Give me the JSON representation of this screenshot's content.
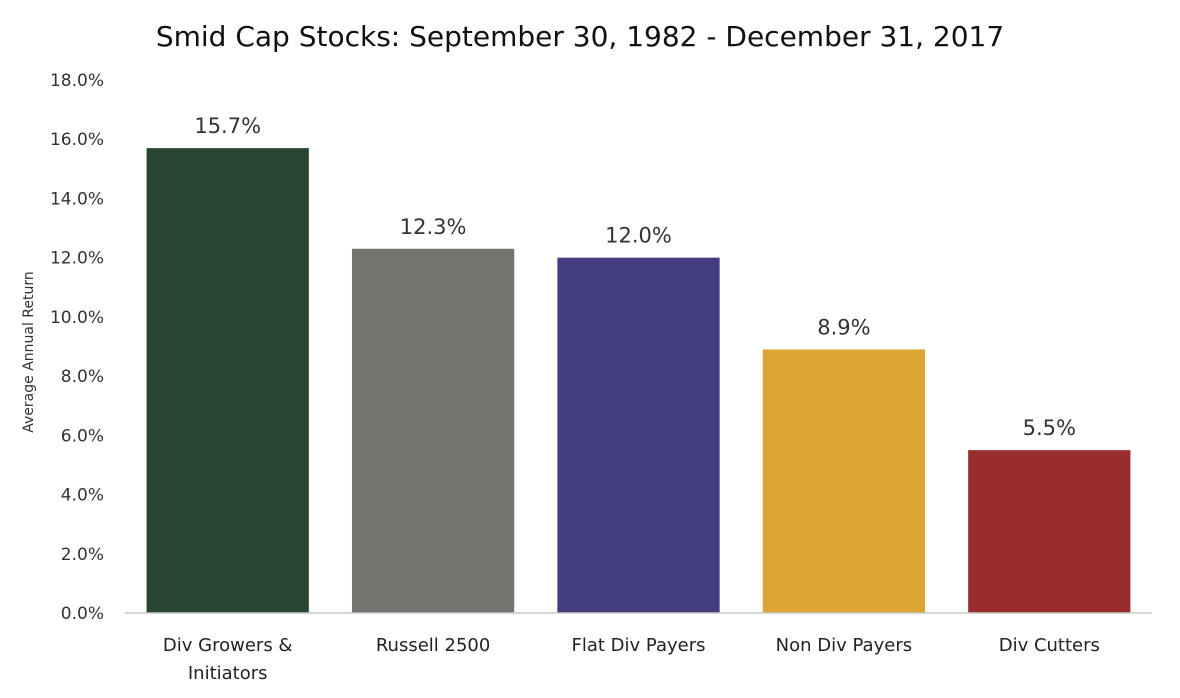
{
  "chart_data": {
    "type": "bar",
    "title": "Smid Cap Stocks: September 30, 1982 - December 31, 2017",
    "xlabel": "",
    "ylabel": "Average Annual Return",
    "ylim": [
      0,
      18
    ],
    "ytick_step": 2,
    "ytick_format": "percent_1dp",
    "grid": false,
    "legend": "none",
    "categories": [
      [
        "Div Growers &",
        "Initiators"
      ],
      [
        "Russell 2500"
      ],
      [
        "Flat Div Payers"
      ],
      [
        "Non Div Payers"
      ],
      [
        "Div Cutters"
      ]
    ],
    "values": [
      15.7,
      12.3,
      12.0,
      8.9,
      5.5
    ],
    "data_labels": [
      "15.7%",
      "12.3%",
      "12.0%",
      "8.9%",
      "5.5%"
    ],
    "colors": [
      "#2b4630",
      "#737470",
      "#433c7e",
      "#dca433",
      "#992d2d"
    ]
  }
}
